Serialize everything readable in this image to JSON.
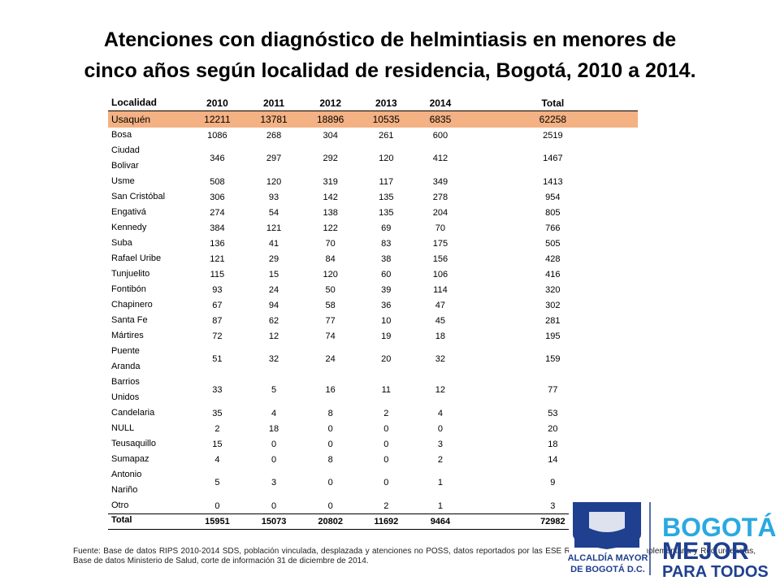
{
  "title": [
    "Atenciones con diagnóstico de helmintiasis en menores de",
    "cinco años según localidad de residencia, Bogotá, 2010 a 2014."
  ],
  "table": {
    "header": [
      "Localidad",
      "2010",
      "2011",
      "2012",
      "2013",
      "2014",
      "Total"
    ],
    "rows": [
      [
        "Usaquén",
        "12211",
        "13781",
        "18896",
        "10535",
        "6835",
        "62258"
      ],
      [
        "Bosa",
        "1086",
        "268",
        "304",
        "261",
        "600",
        "2519"
      ],
      [
        "Ciudad\nBolivar",
        "346",
        "297",
        "292",
        "120",
        "412",
        "1467"
      ],
      [
        "Usme",
        "508",
        "120",
        "319",
        "117",
        "349",
        "1413"
      ],
      [
        "San Cristóbal",
        "306",
        "93",
        "142",
        "135",
        "278",
        "954"
      ],
      [
        "Engativá",
        "274",
        "54",
        "138",
        "135",
        "204",
        "805"
      ],
      [
        "Kennedy",
        "384",
        "121",
        "122",
        "69",
        "70",
        "766"
      ],
      [
        "Suba",
        "136",
        "41",
        "70",
        "83",
        "175",
        "505"
      ],
      [
        "Rafael Uribe",
        "121",
        "29",
        "84",
        "38",
        "156",
        "428"
      ],
      [
        "Tunjuelito",
        "115",
        "15",
        "120",
        "60",
        "106",
        "416"
      ],
      [
        "Fontibón",
        "93",
        "24",
        "50",
        "39",
        "114",
        "320"
      ],
      [
        "Chapinero",
        "67",
        "94",
        "58",
        "36",
        "47",
        "302"
      ],
      [
        "Santa Fe",
        "87",
        "62",
        "77",
        "10",
        "45",
        "281"
      ],
      [
        "Mártires",
        "72",
        "12",
        "74",
        "19",
        "18",
        "195"
      ],
      [
        "Puente\nAranda",
        "51",
        "32",
        "24",
        "20",
        "32",
        "159"
      ],
      [
        "Barrios\nUnidos",
        "33",
        "5",
        "16",
        "11",
        "12",
        "77"
      ],
      [
        "Candelaria",
        "35",
        "4",
        "8",
        "2",
        "4",
        "53"
      ],
      [
        "NULL",
        "2",
        "18",
        "0",
        "0",
        "0",
        "20"
      ],
      [
        "Teusaquillo",
        "15",
        "0",
        "0",
        "0",
        "3",
        "18"
      ],
      [
        "Sumapaz",
        "4",
        "0",
        "8",
        "0",
        "2",
        "14"
      ],
      [
        "Antonio\nNariño",
        "5",
        "3",
        "0",
        "0",
        "1",
        "9"
      ],
      [
        "Otro",
        "0",
        "0",
        "0",
        "2",
        "1",
        "3"
      ]
    ],
    "total": [
      "Total",
      "15951",
      "15073",
      "20802",
      "11692",
      "9464",
      "72982"
    ]
  },
  "footnote": "Fuente: Base de datos RIPS 2010-2014 SDS, población vinculada, desplazada y atenciones no POSS, datos reportados por las ESE Red adscrita, Red complementaria y Red urgencias, Base de datos Ministerio de Salud, corte de información 31 de diciembre de 2014.",
  "logo": {
    "entity": [
      "ALCALDÍA MAYOR",
      "DE BOGOTÁ D.C."
    ],
    "slogan": [
      "BOGOTÁ",
      "MEJOR",
      "PARA TODOS"
    ]
  }
}
